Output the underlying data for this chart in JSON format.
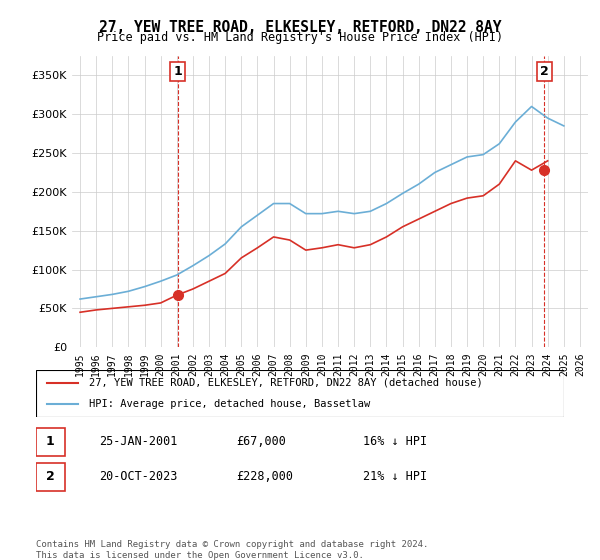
{
  "title": "27, YEW TREE ROAD, ELKESLEY, RETFORD, DN22 8AY",
  "subtitle": "Price paid vs. HM Land Registry's House Price Index (HPI)",
  "legend_line1": "27, YEW TREE ROAD, ELKESLEY, RETFORD, DN22 8AY (detached house)",
  "legend_line2": "HPI: Average price, detached house, Bassetlaw",
  "annotation1_label": "1",
  "annotation1_date": "25-JAN-2001",
  "annotation1_price": "£67,000",
  "annotation1_hpi": "16% ↓ HPI",
  "annotation2_label": "2",
  "annotation2_date": "20-OCT-2023",
  "annotation2_price": "£228,000",
  "annotation2_hpi": "21% ↓ HPI",
  "footer": "Contains HM Land Registry data © Crown copyright and database right 2024.\nThis data is licensed under the Open Government Licence v3.0.",
  "hpi_color": "#6baed6",
  "price_color": "#d73027",
  "annot_color": "#d73027",
  "vline_color": "#d73027",
  "bg_color": "#ffffff",
  "grid_color": "#cccccc",
  "ylim": [
    0,
    375000
  ],
  "yticks": [
    0,
    50000,
    100000,
    150000,
    200000,
    250000,
    300000,
    350000
  ],
  "xlabel_years": [
    "1995",
    "1996",
    "1997",
    "1998",
    "1999",
    "2000",
    "2001",
    "2002",
    "2003",
    "2004",
    "2005",
    "2006",
    "2007",
    "2008",
    "2009",
    "2010",
    "2011",
    "2012",
    "2013",
    "2014",
    "2015",
    "2016",
    "2017",
    "2018",
    "2019",
    "2020",
    "2021",
    "2022",
    "2023",
    "2024",
    "2025",
    "2026"
  ],
  "purchase_year1": 2001.07,
  "purchase_price1": 67000,
  "purchase_year2": 2023.8,
  "purchase_price2": 228000,
  "hpi_years": [
    1995,
    1996,
    1997,
    1998,
    1999,
    2000,
    2001,
    2002,
    2003,
    2004,
    2005,
    2006,
    2007,
    2008,
    2009,
    2010,
    2011,
    2012,
    2013,
    2014,
    2015,
    2016,
    2017,
    2018,
    2019,
    2020,
    2021,
    2022,
    2023,
    2024,
    2025
  ],
  "hpi_values": [
    62000,
    65000,
    68000,
    72000,
    78000,
    85000,
    93000,
    105000,
    118000,
    133000,
    155000,
    170000,
    185000,
    185000,
    172000,
    172000,
    175000,
    172000,
    175000,
    185000,
    198000,
    210000,
    225000,
    235000,
    245000,
    248000,
    262000,
    290000,
    310000,
    295000,
    285000
  ],
  "price_years": [
    1995,
    1996,
    1997,
    1998,
    1999,
    2000,
    2001,
    2002,
    2003,
    2004,
    2005,
    2006,
    2007,
    2008,
    2009,
    2010,
    2011,
    2012,
    2013,
    2014,
    2015,
    2016,
    2017,
    2018,
    2019,
    2020,
    2021,
    2022,
    2023,
    2024
  ],
  "price_values": [
    45000,
    48000,
    50000,
    52000,
    54000,
    57000,
    67000,
    75000,
    85000,
    95000,
    115000,
    128000,
    142000,
    138000,
    125000,
    128000,
    132000,
    128000,
    132000,
    142000,
    155000,
    165000,
    175000,
    185000,
    192000,
    195000,
    210000,
    240000,
    228000,
    240000
  ]
}
